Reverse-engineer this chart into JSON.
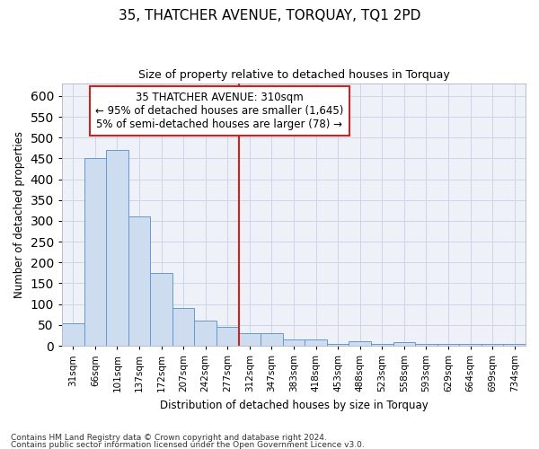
{
  "title": "35, THATCHER AVENUE, TORQUAY, TQ1 2PD",
  "subtitle": "Size of property relative to detached houses in Torquay",
  "xlabel": "Distribution of detached houses by size in Torquay",
  "ylabel": "Number of detached properties",
  "footnote1": "Contains HM Land Registry data © Crown copyright and database right 2024.",
  "footnote2": "Contains public sector information licensed under the Open Government Licence v3.0.",
  "property_label": "35 THATCHER AVENUE: 310sqm",
  "annotation_line1": "← 95% of detached houses are smaller (1,645)",
  "annotation_line2": "5% of semi-detached houses are larger (78) →",
  "bar_color": "#cddcee",
  "bar_edge_color": "#6699cc",
  "vline_color": "#cc2222",
  "grid_color": "#ccd6e8",
  "background_color": "#eef2f8",
  "bins": [
    "31sqm",
    "66sqm",
    "101sqm",
    "137sqm",
    "172sqm",
    "207sqm",
    "242sqm",
    "277sqm",
    "312sqm",
    "347sqm",
    "383sqm",
    "418sqm",
    "453sqm",
    "488sqm",
    "523sqm",
    "558sqm",
    "593sqm",
    "629sqm",
    "664sqm",
    "699sqm",
    "734sqm"
  ],
  "values": [
    55,
    450,
    470,
    310,
    175,
    90,
    60,
    45,
    30,
    30,
    15,
    15,
    5,
    10,
    5,
    8,
    5,
    5,
    5,
    5,
    5
  ],
  "ylim": [
    0,
    630
  ],
  "yticks": [
    0,
    50,
    100,
    150,
    200,
    250,
    300,
    350,
    400,
    450,
    500,
    550,
    600
  ],
  "vline_x_bin_index": 8,
  "figsize": [
    6.0,
    5.0
  ],
  "dpi": 100
}
